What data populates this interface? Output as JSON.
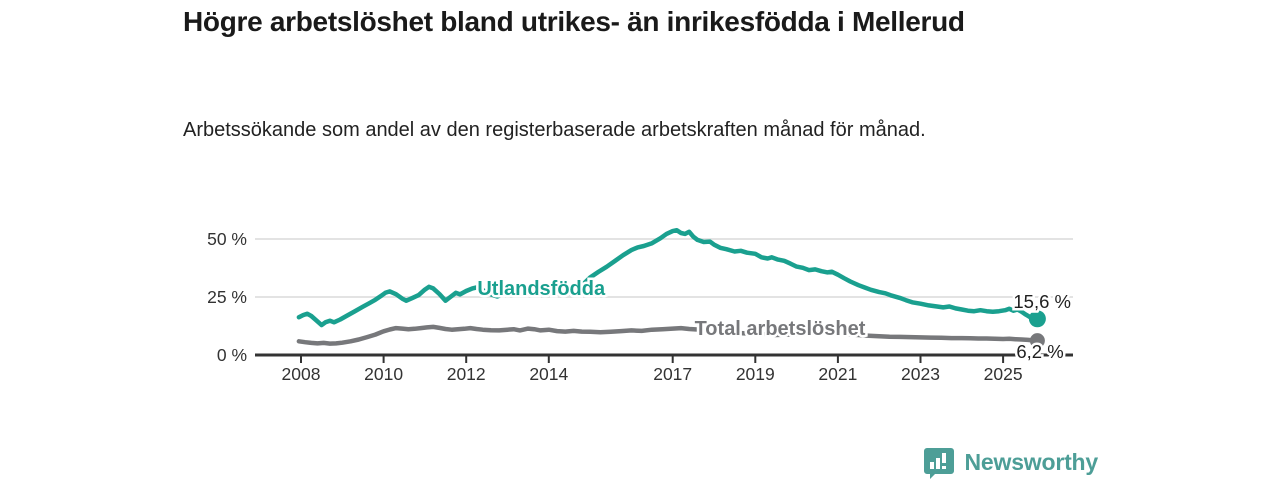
{
  "header": {
    "title": "Högre arbetslöshet bland utrikes- än inrikesfödda i Mellerud",
    "subtitle": "Arbetssökande som andel av den registerbaserade arbetskraften månad för månad."
  },
  "footer": {
    "brand": "Newsworthy"
  },
  "colors": {
    "teal": "#1aa08f",
    "gray": "#77787b",
    "grid": "#dadada",
    "axis": "#333333",
    "axis_text": "#333333",
    "value_text": "#1f1f1f",
    "logo_teal": "#4d9e97",
    "background": "#ffffff"
  },
  "chart_data": {
    "type": "line",
    "title": "Högre arbetslöshet bland utrikes- än inrikesfödda i Mellerud",
    "subtitle": "Arbetssökande som andel av den registerbaserade arbetskraften månad för månad.",
    "grid": true,
    "legend_position": "inline-labels",
    "x_axis": {
      "label": "",
      "tick_values": [
        2008,
        2010,
        2012,
        2014,
        2017,
        2019,
        2021,
        2023,
        2025
      ],
      "tick_labels": [
        "2008",
        "2010",
        "2012",
        "2014",
        "2017",
        "2019",
        "2021",
        "2023",
        "2025"
      ],
      "range": [
        2007.9,
        2026.6
      ]
    },
    "y_axis": {
      "label": "",
      "tick_values": [
        0,
        25,
        50
      ],
      "tick_labels": [
        "0 %",
        "25 %",
        "50 %"
      ],
      "range": [
        0,
        58
      ]
    },
    "series": [
      {
        "name": "Utlandsfödda",
        "color": "#1aa08f",
        "end_label": "15,6 %",
        "end_value": 15.6,
        "label_anchor": {
          "x": 2012.27,
          "y": 28.9
        },
        "points": [
          [
            2007.95,
            16.3
          ],
          [
            2008.05,
            17.2
          ],
          [
            2008.15,
            17.8
          ],
          [
            2008.25,
            16.8
          ],
          [
            2008.35,
            15.2
          ],
          [
            2008.5,
            12.9
          ],
          [
            2008.6,
            14.2
          ],
          [
            2008.7,
            14.8
          ],
          [
            2008.8,
            14.1
          ],
          [
            2008.95,
            15.3
          ],
          [
            2009.1,
            16.8
          ],
          [
            2009.3,
            18.8
          ],
          [
            2009.5,
            20.8
          ],
          [
            2009.65,
            22.3
          ],
          [
            2009.8,
            23.8
          ],
          [
            2009.95,
            25.6
          ],
          [
            2010.05,
            26.9
          ],
          [
            2010.15,
            27.4
          ],
          [
            2010.3,
            26.2
          ],
          [
            2010.45,
            24.3
          ],
          [
            2010.55,
            23.4
          ],
          [
            2010.7,
            24.6
          ],
          [
            2010.85,
            25.8
          ],
          [
            2011.0,
            28.2
          ],
          [
            2011.1,
            29.4
          ],
          [
            2011.2,
            28.7
          ],
          [
            2011.35,
            26.3
          ],
          [
            2011.5,
            23.4
          ],
          [
            2011.6,
            24.8
          ],
          [
            2011.75,
            26.8
          ],
          [
            2011.85,
            26.1
          ],
          [
            2012.0,
            27.6
          ],
          [
            2012.15,
            28.7
          ],
          [
            2012.3,
            29.3
          ],
          [
            2012.45,
            27.4
          ],
          [
            2012.6,
            26.1
          ],
          [
            2012.75,
            25.2
          ],
          [
            2012.9,
            26.3
          ],
          [
            2013.05,
            27.2
          ],
          [
            2013.2,
            28.1
          ],
          [
            2013.35,
            27.4
          ],
          [
            2013.5,
            28.4
          ],
          [
            2013.65,
            28.0
          ],
          [
            2013.8,
            27.1
          ],
          [
            2013.95,
            28.0
          ],
          [
            2014.1,
            27.2
          ],
          [
            2014.3,
            26.2
          ],
          [
            2014.5,
            26.6
          ],
          [
            2014.7,
            28.3
          ],
          [
            2014.85,
            30.8
          ],
          [
            2015.0,
            33.4
          ],
          [
            2015.2,
            35.8
          ],
          [
            2015.4,
            38.0
          ],
          [
            2015.6,
            40.5
          ],
          [
            2015.8,
            43.0
          ],
          [
            2016.0,
            45.2
          ],
          [
            2016.15,
            46.4
          ],
          [
            2016.3,
            47.0
          ],
          [
            2016.5,
            48.2
          ],
          [
            2016.7,
            50.3
          ],
          [
            2016.85,
            52.2
          ],
          [
            2017.0,
            53.4
          ],
          [
            2017.1,
            53.8
          ],
          [
            2017.2,
            52.6
          ],
          [
            2017.3,
            52.2
          ],
          [
            2017.4,
            53.1
          ],
          [
            2017.5,
            51.0
          ],
          [
            2017.6,
            49.6
          ],
          [
            2017.75,
            48.7
          ],
          [
            2017.9,
            48.9
          ],
          [
            2018.0,
            47.6
          ],
          [
            2018.15,
            46.2
          ],
          [
            2018.3,
            45.6
          ],
          [
            2018.5,
            44.6
          ],
          [
            2018.65,
            44.9
          ],
          [
            2018.8,
            44.1
          ],
          [
            2019.0,
            43.6
          ],
          [
            2019.15,
            42.1
          ],
          [
            2019.3,
            41.6
          ],
          [
            2019.4,
            42.1
          ],
          [
            2019.55,
            41.1
          ],
          [
            2019.7,
            40.6
          ],
          [
            2019.85,
            39.4
          ],
          [
            2020.0,
            38.1
          ],
          [
            2020.15,
            37.6
          ],
          [
            2020.3,
            36.6
          ],
          [
            2020.45,
            36.9
          ],
          [
            2020.6,
            36.1
          ],
          [
            2020.75,
            35.6
          ],
          [
            2020.85,
            35.9
          ],
          [
            2021.0,
            34.6
          ],
          [
            2021.15,
            33.1
          ],
          [
            2021.3,
            31.7
          ],
          [
            2021.5,
            30.1
          ],
          [
            2021.65,
            29.1
          ],
          [
            2021.8,
            28.1
          ],
          [
            2022.0,
            27.1
          ],
          [
            2022.15,
            26.6
          ],
          [
            2022.3,
            25.6
          ],
          [
            2022.5,
            24.6
          ],
          [
            2022.65,
            23.6
          ],
          [
            2022.8,
            22.7
          ],
          [
            2023.0,
            22.1
          ],
          [
            2023.2,
            21.4
          ],
          [
            2023.4,
            20.9
          ],
          [
            2023.55,
            20.5
          ],
          [
            2023.7,
            20.9
          ],
          [
            2023.85,
            20.1
          ],
          [
            2024.0,
            19.6
          ],
          [
            2024.15,
            19.1
          ],
          [
            2024.3,
            18.9
          ],
          [
            2024.45,
            19.3
          ],
          [
            2024.6,
            18.9
          ],
          [
            2024.75,
            18.6
          ],
          [
            2024.9,
            18.9
          ],
          [
            2025.05,
            19.3
          ],
          [
            2025.15,
            19.9
          ],
          [
            2025.25,
            19.1
          ],
          [
            2025.35,
            19.6
          ],
          [
            2025.45,
            18.6
          ],
          [
            2025.55,
            17.4
          ],
          [
            2025.65,
            16.4
          ],
          [
            2025.75,
            15.9
          ],
          [
            2025.83,
            15.6
          ]
        ]
      },
      {
        "name": "Total arbetslöshet",
        "color": "#77787b",
        "end_label": "6,2 %",
        "end_value": 6.2,
        "label_anchor": {
          "x": 2017.53,
          "y": 11.6
        },
        "points": [
          [
            2007.95,
            5.9
          ],
          [
            2008.1,
            5.5
          ],
          [
            2008.25,
            5.2
          ],
          [
            2008.4,
            5.0
          ],
          [
            2008.55,
            5.2
          ],
          [
            2008.7,
            4.9
          ],
          [
            2008.85,
            5.0
          ],
          [
            2009.0,
            5.3
          ],
          [
            2009.2,
            5.9
          ],
          [
            2009.4,
            6.7
          ],
          [
            2009.6,
            7.7
          ],
          [
            2009.8,
            8.8
          ],
          [
            2010.0,
            10.2
          ],
          [
            2010.15,
            11.0
          ],
          [
            2010.3,
            11.6
          ],
          [
            2010.45,
            11.4
          ],
          [
            2010.6,
            11.1
          ],
          [
            2010.75,
            11.3
          ],
          [
            2010.9,
            11.6
          ],
          [
            2011.05,
            11.9
          ],
          [
            2011.2,
            12.1
          ],
          [
            2011.35,
            11.7
          ],
          [
            2011.5,
            11.2
          ],
          [
            2011.65,
            10.9
          ],
          [
            2011.8,
            11.1
          ],
          [
            2011.95,
            11.3
          ],
          [
            2012.1,
            11.6
          ],
          [
            2012.25,
            11.2
          ],
          [
            2012.4,
            10.9
          ],
          [
            2012.6,
            10.7
          ],
          [
            2012.8,
            10.6
          ],
          [
            2013.0,
            10.9
          ],
          [
            2013.15,
            11.1
          ],
          [
            2013.3,
            10.6
          ],
          [
            2013.5,
            11.4
          ],
          [
            2013.65,
            11.1
          ],
          [
            2013.8,
            10.6
          ],
          [
            2014.0,
            10.9
          ],
          [
            2014.2,
            10.3
          ],
          [
            2014.4,
            10.1
          ],
          [
            2014.6,
            10.4
          ],
          [
            2014.8,
            10.1
          ],
          [
            2015.0,
            10.0
          ],
          [
            2015.25,
            9.8
          ],
          [
            2015.5,
            10.0
          ],
          [
            2015.75,
            10.3
          ],
          [
            2016.0,
            10.6
          ],
          [
            2016.25,
            10.4
          ],
          [
            2016.5,
            10.9
          ],
          [
            2016.75,
            11.1
          ],
          [
            2017.0,
            11.4
          ],
          [
            2017.2,
            11.6
          ],
          [
            2017.4,
            11.2
          ],
          [
            2017.6,
            11.0
          ],
          [
            2017.8,
            10.6
          ],
          [
            2018.0,
            10.2
          ],
          [
            2018.25,
            9.9
          ],
          [
            2018.5,
            9.6
          ],
          [
            2018.75,
            9.3
          ],
          [
            2019.0,
            9.1
          ],
          [
            2019.25,
            8.9
          ],
          [
            2019.5,
            8.6
          ],
          [
            2019.75,
            8.8
          ],
          [
            2020.0,
            8.9
          ],
          [
            2020.25,
            9.6
          ],
          [
            2020.5,
            9.9
          ],
          [
            2020.75,
            9.6
          ],
          [
            2021.0,
            9.3
          ],
          [
            2021.25,
            8.9
          ],
          [
            2021.5,
            8.6
          ],
          [
            2021.75,
            8.3
          ],
          [
            2022.0,
            8.1
          ],
          [
            2022.25,
            7.9
          ],
          [
            2022.5,
            7.8
          ],
          [
            2022.75,
            7.7
          ],
          [
            2023.0,
            7.6
          ],
          [
            2023.25,
            7.5
          ],
          [
            2023.5,
            7.4
          ],
          [
            2023.75,
            7.3
          ],
          [
            2024.0,
            7.3
          ],
          [
            2024.2,
            7.2
          ],
          [
            2024.4,
            7.1
          ],
          [
            2024.6,
            7.1
          ],
          [
            2024.8,
            7.0
          ],
          [
            2025.0,
            6.9
          ],
          [
            2025.15,
            7.0
          ],
          [
            2025.3,
            6.8
          ],
          [
            2025.45,
            6.7
          ],
          [
            2025.6,
            6.5
          ],
          [
            2025.72,
            6.3
          ],
          [
            2025.83,
            6.2
          ]
        ]
      }
    ]
  }
}
